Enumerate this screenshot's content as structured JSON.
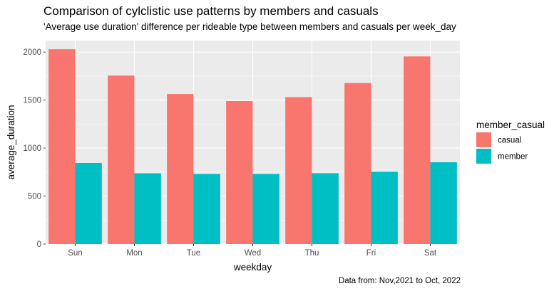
{
  "chart_data": {
    "type": "bar",
    "title": "Comparison of cylclistic use patterns by members and casuals",
    "subtitle": "'Average use duration' difference per rideable type between members and casuals per week_day",
    "caption": "Data from: Nov,2021 to Oct, 2022",
    "xlabel": "weekday",
    "ylabel": "average_duration",
    "categories": [
      "Sun",
      "Mon",
      "Tue",
      "Wed",
      "Thu",
      "Fri",
      "Sat"
    ],
    "series": [
      {
        "name": "casual",
        "color": "#F8766D",
        "values": [
          2030,
          1755,
          1563,
          1490,
          1530,
          1677,
          1955
        ]
      },
      {
        "name": "member",
        "color": "#00BFC4",
        "values": [
          845,
          737,
          730,
          730,
          738,
          752,
          852
        ]
      }
    ],
    "ylim": [
      0,
      2120
    ],
    "yticks": [
      0,
      500,
      1000,
      1500,
      2000
    ],
    "yticklabels": [
      "0",
      "500",
      "1000",
      "1500",
      "2000"
    ],
    "legend_title": "member_casual",
    "legend_position": "right",
    "grid": true,
    "panel_background": "#EBEBEB"
  }
}
